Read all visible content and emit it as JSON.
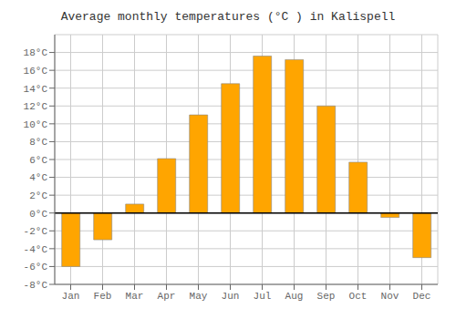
{
  "chart_data": {
    "type": "bar",
    "title": "Average monthly temperatures (°C ) in Kalispell",
    "categories": [
      "Jan",
      "Feb",
      "Mar",
      "Apr",
      "May",
      "Jun",
      "Jul",
      "Aug",
      "Sep",
      "Oct",
      "Nov",
      "Dec"
    ],
    "values": [
      -6.0,
      -3.0,
      1.0,
      6.1,
      11.0,
      14.5,
      17.6,
      17.2,
      12.0,
      5.7,
      -0.5,
      -5.0
    ],
    "color": "#FFA500",
    "ylim": [
      -8,
      20
    ],
    "yticks": [
      {
        "value": -8,
        "label": "-8°C"
      },
      {
        "value": -6,
        "label": "-6°C"
      },
      {
        "value": -4,
        "label": "-4°C"
      },
      {
        "value": -2,
        "label": "-2°C"
      },
      {
        "value": 0,
        "label": "0°C"
      },
      {
        "value": 2,
        "label": "2°C"
      },
      {
        "value": 4,
        "label": "4°C"
      },
      {
        "value": 6,
        "label": "6°C"
      },
      {
        "value": 8,
        "label": "8°C"
      },
      {
        "value": 10,
        "label": "10°C"
      },
      {
        "value": 12,
        "label": "12°C"
      },
      {
        "value": 14,
        "label": "14°C"
      },
      {
        "value": 16,
        "label": "16°C"
      },
      {
        "value": 18,
        "label": "18°C"
      }
    ],
    "grid": true
  }
}
